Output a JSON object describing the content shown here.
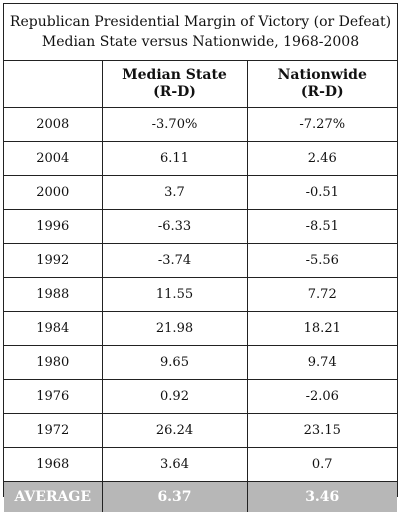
{
  "title_line1": "Republican Presidential Margin of Victory (or Defeat)",
  "title_line2": "Median State versus Nationwide, 1968-2008",
  "chart_data": {
    "type": "table",
    "columns": [
      {
        "line1": "",
        "line2": ""
      },
      {
        "line1": "Median State",
        "line2": "(R-D)"
      },
      {
        "line1": "Nationwide",
        "line2": "(R-D)"
      }
    ],
    "rows": [
      [
        "2008",
        "-3.70%",
        "-7.27%"
      ],
      [
        "2004",
        "6.11",
        "2.46"
      ],
      [
        "2000",
        "3.7",
        "-0.51"
      ],
      [
        "1996",
        "-6.33",
        "-8.51"
      ],
      [
        "1992",
        "-3.74",
        "-5.56"
      ],
      [
        "1988",
        "11.55",
        "7.72"
      ],
      [
        "1984",
        "21.98",
        "18.21"
      ],
      [
        "1980",
        "9.65",
        "9.74"
      ],
      [
        "1976",
        "0.92",
        "-2.06"
      ],
      [
        "1972",
        "26.24",
        "23.15"
      ],
      [
        "1968",
        "3.64",
        "0.7"
      ]
    ],
    "average": [
      "AVERAGE",
      "6.37",
      "3.46"
    ]
  },
  "colors": {
    "average_row_bg": "#b7b7b7",
    "average_row_text": "#ffffff",
    "border": "#222222"
  }
}
